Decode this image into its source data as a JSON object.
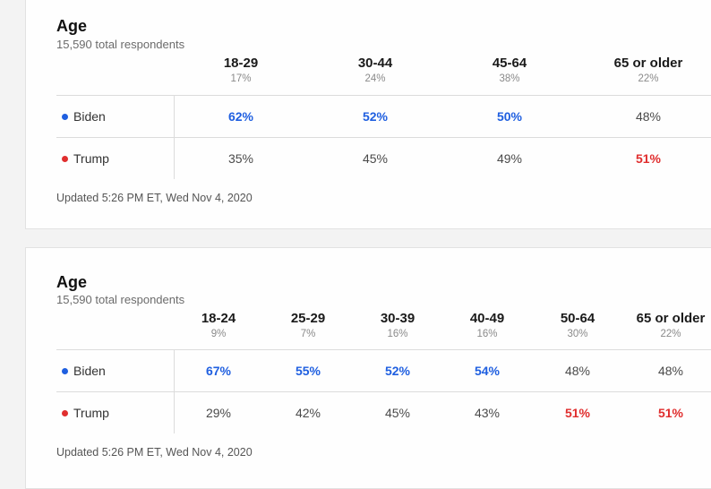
{
  "colors": {
    "biden": "#1f5fe0",
    "trump": "#e02e2e"
  },
  "table1": {
    "title": "Age",
    "subtitle": "15,590 total respondents",
    "columns": [
      {
        "label": "18-29",
        "pct": "17%"
      },
      {
        "label": "30-44",
        "pct": "24%"
      },
      {
        "label": "45-64",
        "pct": "38%"
      },
      {
        "label": "65 or older",
        "pct": "22%"
      }
    ],
    "rows": [
      {
        "candidate": "Biden",
        "values": [
          "62%",
          "52%",
          "50%",
          "48%"
        ]
      },
      {
        "candidate": "Trump",
        "values": [
          "35%",
          "45%",
          "49%",
          "51%"
        ]
      }
    ],
    "updated": "Updated 5:26 PM ET, Wed Nov 4, 2020"
  },
  "table2": {
    "title": "Age",
    "subtitle": "15,590 total respondents",
    "columns": [
      {
        "label": "18-24",
        "pct": "9%"
      },
      {
        "label": "25-29",
        "pct": "7%"
      },
      {
        "label": "30-39",
        "pct": "16%"
      },
      {
        "label": "40-49",
        "pct": "16%"
      },
      {
        "label": "50-64",
        "pct": "30%"
      },
      {
        "label": "65 or older",
        "pct": "22%"
      }
    ],
    "rows": [
      {
        "candidate": "Biden",
        "values": [
          "67%",
          "55%",
          "52%",
          "54%",
          "48%",
          "48%"
        ]
      },
      {
        "candidate": "Trump",
        "values": [
          "29%",
          "42%",
          "45%",
          "43%",
          "51%",
          "51%"
        ]
      }
    ],
    "updated": "Updated 5:26 PM ET, Wed Nov 4, 2020"
  }
}
